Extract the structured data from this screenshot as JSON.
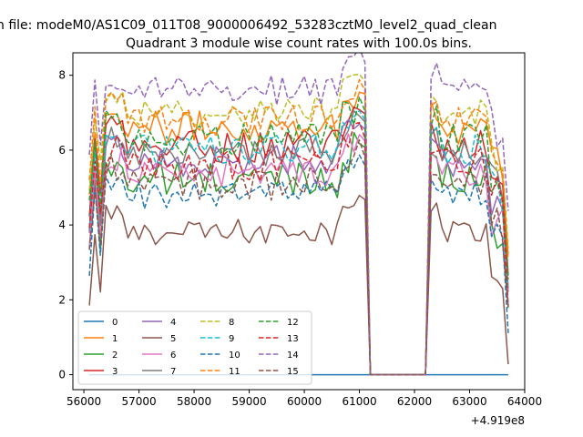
{
  "figure": {
    "suptitle": "n file: modeM0/AS1C09_011T08_9000006492_53283cztM0_level2_quad_clean"
  },
  "chart_data": {
    "type": "line",
    "title": "Quadrant 3 module wise count rates with 100.0s bins.",
    "xlabel": "",
    "ylabel": "",
    "x_offset_label": "+4.919e8",
    "xlim": [
      55800,
      64000
    ],
    "ylim": [
      -0.4,
      8.6
    ],
    "xticks": [
      56000,
      57000,
      58000,
      59000,
      60000,
      61000,
      62000,
      63000,
      64000
    ],
    "xtick_labels": [
      "56000",
      "57000",
      "58000",
      "59000",
      "60000",
      "61000",
      "62000",
      "63000",
      "64000"
    ],
    "yticks": [
      0,
      2,
      4,
      6,
      8
    ],
    "ytick_labels": [
      "0",
      "2",
      "4",
      "6",
      "8"
    ],
    "grid": false,
    "legend_position": "lower-left",
    "legend_columns": 4,
    "x_range_note": "x values in seconds relative to offset",
    "segments": [
      {
        "start": 56100,
        "end": 61100
      },
      {
        "start": 62200,
        "end": 63700
      }
    ],
    "gap": {
      "start": 61200,
      "end": 62200,
      "value": 0
    },
    "series": [
      {
        "name": "0",
        "color": "#1f77b4",
        "linestyle": "solid",
        "baseline": 0.0,
        "amplitude": 0.0,
        "constant_zero": true
      },
      {
        "name": "1",
        "color": "#ff7f0e",
        "linestyle": "solid",
        "baseline": 6.6,
        "amplitude": 0.45
      },
      {
        "name": "2",
        "color": "#2ca02c",
        "linestyle": "solid",
        "baseline": 5.2,
        "amplitude": 0.5
      },
      {
        "name": "3",
        "color": "#d62728",
        "linestyle": "solid",
        "baseline": 6.1,
        "amplitude": 0.45
      },
      {
        "name": "4",
        "color": "#9467bd",
        "linestyle": "solid",
        "baseline": 5.7,
        "amplitude": 0.45
      },
      {
        "name": "5",
        "color": "#8c564b",
        "linestyle": "solid",
        "baseline": 3.8,
        "amplitude": 0.35
      },
      {
        "name": "6",
        "color": "#e377c2",
        "linestyle": "solid",
        "baseline": 5.4,
        "amplitude": 0.4
      },
      {
        "name": "7",
        "color": "#7f7f7f",
        "linestyle": "solid",
        "baseline": 5.9,
        "amplitude": 0.35
      },
      {
        "name": "8",
        "color": "#bcbd22",
        "linestyle": "dashed",
        "baseline": 7.0,
        "amplitude": 0.35
      },
      {
        "name": "9",
        "color": "#17becf",
        "linestyle": "dashed",
        "baseline": 6.0,
        "amplitude": 0.4
      },
      {
        "name": "10",
        "color": "#1f77b4",
        "linestyle": "dashed",
        "baseline": 4.8,
        "amplitude": 0.4
      },
      {
        "name": "11",
        "color": "#ff7f0e",
        "linestyle": "dashed",
        "baseline": 6.8,
        "amplitude": 0.4
      },
      {
        "name": "12",
        "color": "#2ca02c",
        "linestyle": "dashed",
        "baseline": 6.3,
        "amplitude": 0.45
      },
      {
        "name": "13",
        "color": "#d62728",
        "linestyle": "dashed",
        "baseline": 5.6,
        "amplitude": 0.45
      },
      {
        "name": "14",
        "color": "#9467bd",
        "linestyle": "dashed",
        "baseline": 7.6,
        "amplitude": 0.4
      },
      {
        "name": "15",
        "color": "#8c564b",
        "linestyle": "dashed",
        "baseline": 5.1,
        "amplitude": 0.45
      }
    ]
  }
}
